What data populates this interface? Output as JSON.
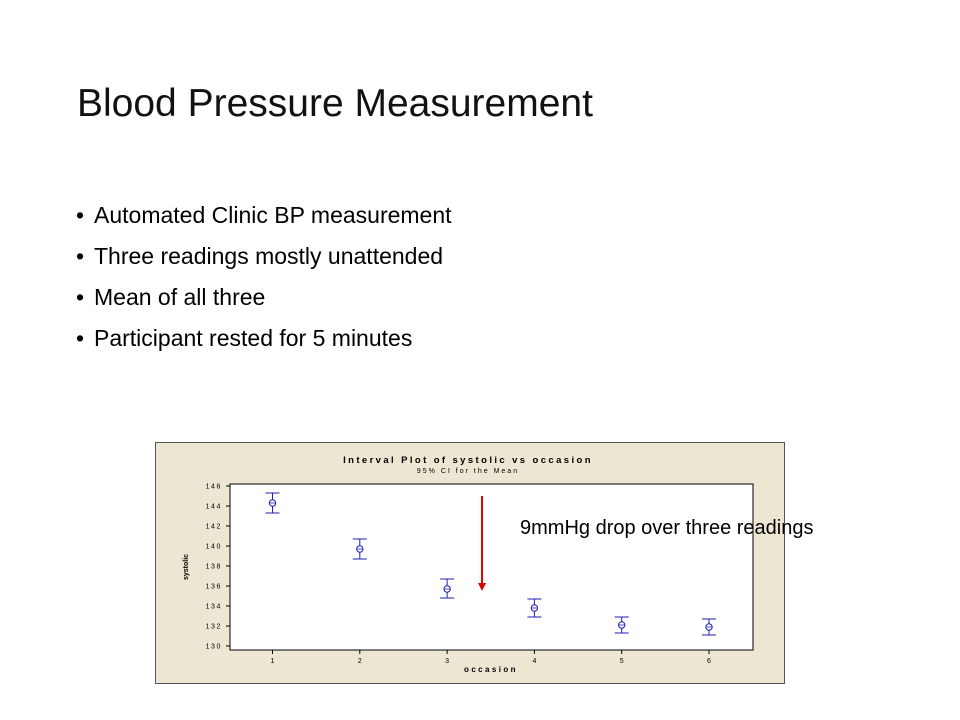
{
  "slide": {
    "title": "Blood Pressure Measurement",
    "bullets": [
      "Automated Clinic BP measurement",
      "Three readings mostly unattended",
      "Mean of all three",
      "Participant rested for 5 minutes"
    ],
    "annotation": "9mmHg drop over three readings"
  },
  "colors": {
    "chart_frame_bg": "#ede6d3",
    "marker": "#1f1fb0",
    "arrow": "#e00000"
  },
  "chart_data": {
    "type": "interval",
    "title": "Interval Plot of systolic vs occasion",
    "subtitle": "95% CI for the Mean",
    "xlabel": "occasion",
    "ylabel": "systolic",
    "categories": [
      "1",
      "2",
      "3",
      "4",
      "5",
      "6"
    ],
    "means": [
      144.3,
      139.7,
      135.7,
      133.8,
      132.1,
      131.9
    ],
    "lower": [
      143.3,
      138.7,
      134.8,
      132.9,
      131.3,
      131.1
    ],
    "upper": [
      145.3,
      140.7,
      136.7,
      134.7,
      132.9,
      132.7
    ],
    "ylim": [
      129.6,
      146.2
    ],
    "yticks": [
      130,
      132,
      134,
      136,
      138,
      140,
      142,
      144,
      146
    ],
    "grid": false,
    "arrow": {
      "x": 3.4,
      "y_from": 145.0,
      "y_to": 135.5
    }
  }
}
